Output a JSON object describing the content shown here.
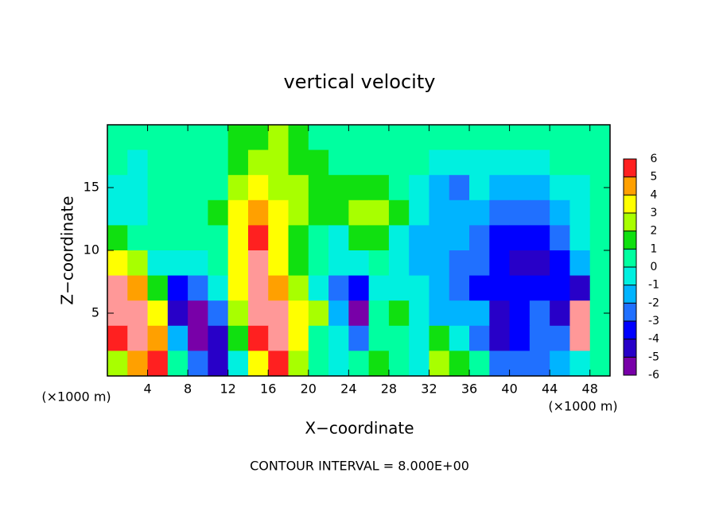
{
  "chart_data": {
    "type": "heatmap",
    "title": "vertical velocity",
    "x_label": "X−coordinate",
    "y_label": "Z−coordinate",
    "x_unit": "(×1000 m)",
    "y_unit": "(×1000 m)",
    "footer": "CONTOUR INTERVAL = 8.000E+00",
    "xlim": [
      0,
      50
    ],
    "ylim": [
      0,
      20
    ],
    "xticks": [
      4,
      8,
      12,
      16,
      20,
      24,
      28,
      32,
      36,
      40,
      44,
      48
    ],
    "yticks": [
      5,
      10,
      15
    ],
    "x": [
      1,
      3,
      5,
      7,
      9,
      11,
      13,
      15,
      17,
      19,
      21,
      23,
      25,
      27,
      29,
      31,
      33,
      35,
      37,
      39,
      41,
      43,
      45,
      47,
      49
    ],
    "y": [
      19,
      17,
      15,
      13,
      11,
      9,
      7,
      5,
      3,
      1
    ],
    "z": [
      [
        0.5,
        0.5,
        0.5,
        0.5,
        0.5,
        0.5,
        1,
        1.5,
        2,
        1,
        0.5,
        0.5,
        0.5,
        0.5,
        0.5,
        0.5,
        0,
        0,
        0,
        0,
        0,
        0,
        0,
        0.5,
        0.5
      ],
      [
        0,
        -0.5,
        0,
        0.5,
        0.5,
        0.5,
        1,
        2.5,
        2.5,
        1.5,
        1,
        0.5,
        0.5,
        0.5,
        0,
        0,
        -0.5,
        -0.5,
        -0.5,
        -0.5,
        -0.5,
        -0.5,
        0,
        0,
        0.5
      ],
      [
        -1,
        -1,
        0,
        0.5,
        0.5,
        0.5,
        2,
        3,
        2.5,
        2,
        1.5,
        1,
        1.5,
        1,
        0,
        -1,
        -2,
        -3,
        -1,
        -2,
        -2,
        -2,
        -1,
        -0.5,
        0.5
      ],
      [
        -1,
        -0.5,
        0,
        0.5,
        0.5,
        1,
        3,
        4,
        3,
        2,
        1.5,
        1,
        2,
        2.5,
        1,
        -1,
        -2,
        -2,
        -2,
        -3,
        -3,
        -3,
        -2,
        -1,
        0
      ],
      [
        1,
        0.5,
        0.5,
        0.5,
        0.5,
        0.5,
        3.5,
        5,
        3,
        1.5,
        0,
        -1,
        1,
        1.5,
        -0.5,
        -2,
        -2,
        -2,
        -3,
        -4,
        -4,
        -4,
        -3,
        -1,
        0.5
      ],
      [
        3,
        2,
        -0.5,
        -1,
        -1,
        0,
        3,
        6,
        3,
        1,
        0,
        -1,
        -1,
        0,
        -1,
        -2,
        -2,
        -3,
        -3,
        -4,
        -5,
        -5,
        -4,
        -2,
        0
      ],
      [
        6,
        4,
        1,
        -4,
        -3,
        -1,
        3,
        6,
        4,
        2,
        -1,
        -3,
        -4,
        -1,
        -1,
        -1,
        -2,
        -3,
        -4,
        -4,
        -4,
        -4,
        -4,
        -5,
        0
      ],
      [
        6,
        6,
        3,
        -5,
        -6,
        -3,
        2,
        6,
        6,
        3,
        2,
        -2,
        -6,
        0,
        1,
        -1,
        -2,
        -2,
        -2,
        -5,
        -4,
        -3,
        -5,
        6,
        0
      ],
      [
        5,
        6,
        4,
        -2,
        -6,
        -5,
        1,
        5,
        6,
        3,
        0,
        -1,
        -3,
        0,
        0,
        -1,
        1,
        -1,
        -3,
        -5,
        -4,
        -3,
        -3,
        6,
        0
      ],
      [
        2,
        4,
        5,
        0,
        -3,
        -5,
        -1,
        3,
        5,
        2,
        0,
        -1,
        0,
        1,
        0,
        -1,
        2,
        1,
        0,
        -3,
        -3,
        -3,
        -2,
        -1,
        0
      ]
    ],
    "colorbar_ticks": [
      6,
      5,
      4,
      3,
      2,
      1,
      0,
      -1,
      -2,
      -3,
      -4,
      -5,
      -6
    ],
    "colorbar_lim": [
      -6,
      6
    ],
    "colors": [
      "#7800a8",
      "#2800c8",
      "#0000ff",
      "#2070ff",
      "#00b4ff",
      "#00f0e0",
      "#00ffa0",
      "#10e010",
      "#a8ff00",
      "#ffff00",
      "#ffa000",
      "#ff2020",
      "#ff9898"
    ]
  }
}
